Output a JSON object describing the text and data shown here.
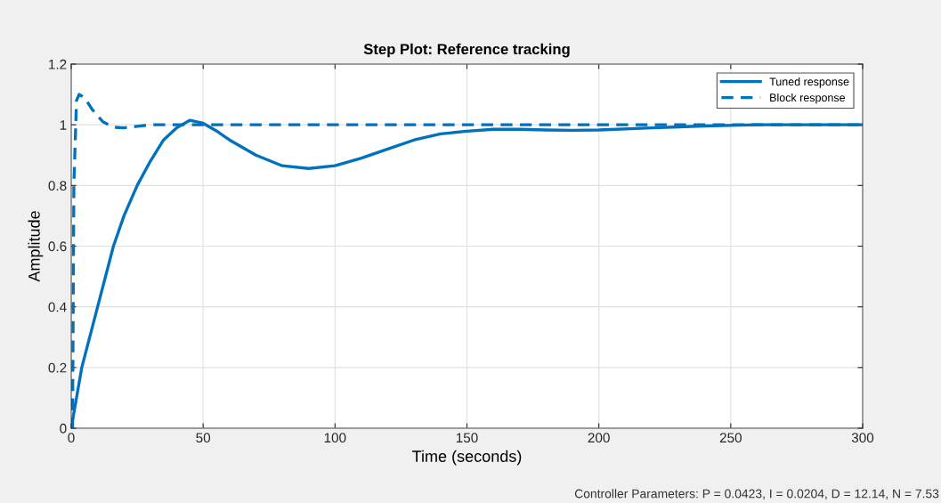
{
  "chart_data": {
    "type": "line",
    "title": "Step Plot: Reference tracking",
    "xlabel": "Time (seconds)",
    "ylabel": "Amplitude",
    "xlim": [
      0,
      300
    ],
    "ylim": [
      0,
      1.2
    ],
    "xticks": [
      0,
      50,
      100,
      150,
      200,
      250,
      300
    ],
    "yticks": [
      0,
      0.2,
      0.4,
      0.6,
      0.8,
      1,
      1.2
    ],
    "grid": true,
    "legend": "top right",
    "annotations": [
      "Controller Parameters: P = 0.0423, I = 0.0204, D = 12.14, N = 7.53"
    ],
    "series": [
      {
        "name": "Tuned response",
        "color": "#0072bd",
        "line_style": "solid",
        "x": [
          0,
          4,
          10,
          16,
          20,
          25,
          30,
          35,
          40,
          45,
          50,
          55,
          60,
          70,
          80,
          90,
          100,
          110,
          120,
          130,
          140,
          150,
          160,
          170,
          180,
          190,
          200,
          220,
          240,
          260,
          300
        ],
        "values": [
          0,
          0.2,
          0.4,
          0.6,
          0.7,
          0.8,
          0.88,
          0.95,
          0.99,
          1.015,
          1.005,
          0.98,
          0.95,
          0.9,
          0.865,
          0.856,
          0.865,
          0.89,
          0.92,
          0.95,
          0.97,
          0.979,
          0.985,
          0.985,
          0.983,
          0.982,
          0.983,
          0.99,
          0.996,
          1.0,
          1.0
        ]
      },
      {
        "name": "Block response",
        "color": "#0072bd",
        "line_style": "dashed",
        "x": [
          0,
          0.5,
          1,
          2,
          3,
          5,
          8,
          12,
          16,
          20,
          25,
          30,
          300
        ],
        "values": [
          0,
          0,
          0.8,
          1.08,
          1.1,
          1.09,
          1.05,
          1.01,
          0.992,
          0.99,
          0.995,
          1.0,
          1.0
        ]
      }
    ]
  }
}
